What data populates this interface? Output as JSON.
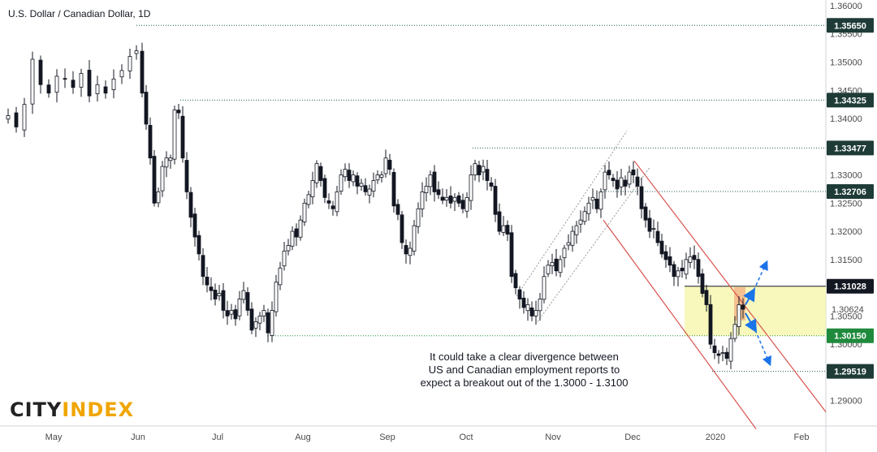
{
  "chart_data": {
    "type": "candlestick",
    "title": "U.S. Dollar / Canadian Dollar, 1D",
    "ylim": [
      1.2855,
      1.361
    ],
    "y_ticks": [
      "1.36000",
      "1.35500",
      "1.35000",
      "1.34500",
      "1.34000",
      "1.33500",
      "1.33000",
      "1.32500",
      "1.32000",
      "1.31500",
      "1.31000",
      "1.30500",
      "1.30000",
      "1.29500",
      "1.29000"
    ],
    "x_ticks": [
      "May",
      "Jun",
      "Jul",
      "Aug",
      "Sep",
      "Oct",
      "Nov",
      "Dec",
      "2020",
      "Feb"
    ],
    "levels": [
      {
        "value": 1.3565,
        "label": "1.35650",
        "color": "#1e5f5a",
        "style": "dotted"
      },
      {
        "value": 1.34325,
        "label": "1.34325",
        "color": "#1e5f5a",
        "style": "dotted"
      },
      {
        "value": 1.33477,
        "label": "1.33477",
        "color": "#1e5f5a",
        "style": "dotted"
      },
      {
        "value": 1.32706,
        "label": "1.32706",
        "color": "#1e5f5a",
        "style": "dotted"
      },
      {
        "value": 1.31028,
        "label": "1.31028",
        "color": "#131722",
        "style": "solid"
      },
      {
        "value": 1.30624,
        "label": "1.30624",
        "color": "#1e5f5a",
        "style": "none"
      },
      {
        "value": 1.3015,
        "label": "1.30150",
        "color": "#1f8a3c",
        "style": "dotted"
      },
      {
        "value": 1.29519,
        "label": "1.29519",
        "color": "#1e5f5a",
        "style": "dotted"
      }
    ],
    "range_box": {
      "high": 1.31028,
      "low": 1.3015,
      "start": "Dec 20",
      "color": "#f7f7b0"
    },
    "current_price": 1.30624
  },
  "annotation": {
    "line1": "It could take a clear divergence between",
    "line2": "US and Canadian employment reports to",
    "line3": "expect a breakout out of the 1.3000 - 1.3100"
  },
  "logo": {
    "part1": "CITY",
    "part2": "INDEX"
  },
  "colors": {
    "up": "#ffffff",
    "down": "#131722",
    "channel": "#d9534f",
    "arrow": "#1a73e8",
    "box": "#f7f7b0",
    "level_box": "#1e3b37"
  }
}
